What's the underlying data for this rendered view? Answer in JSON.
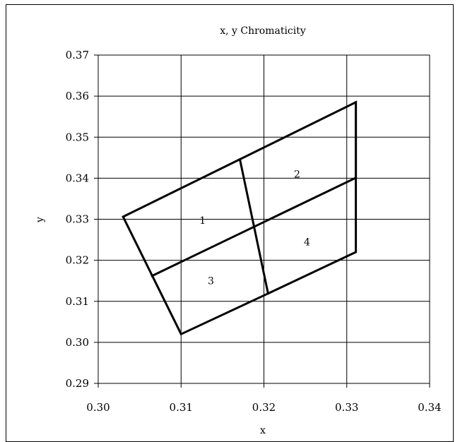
{
  "chart_data": {
    "type": "line",
    "title": "x, y Chromaticity",
    "xlabel": "x",
    "ylabel": "y",
    "xlim": [
      0.3,
      0.34
    ],
    "ylim": [
      0.29,
      0.37
    ],
    "x_ticks": [
      "0.30",
      "0.31",
      "0.32",
      "0.33",
      "0.34"
    ],
    "y_ticks": [
      "0.29",
      "0.30",
      "0.31",
      "0.32",
      "0.33",
      "0.34",
      "0.35",
      "0.36",
      "0.37"
    ],
    "grid": true,
    "series": [
      {
        "x": [
          0.303,
          0.3171,
          0.3311,
          0.3311,
          0.3205,
          0.31,
          0.303
        ],
        "y": [
          0.3306,
          0.3446,
          0.3585,
          0.322,
          0.3119,
          0.302,
          0.3306
        ]
      },
      {
        "x": [
          0.3065,
          0.3311
        ],
        "y": [
          0.3162,
          0.3401
        ]
      },
      {
        "x": [
          0.3171,
          0.3205
        ],
        "y": [
          0.3446,
          0.3119
        ]
      },
      {
        "x": [
          0.3311,
          0.3311
        ],
        "y": [
          0.3401,
          0.3585
        ]
      }
    ],
    "region_labels": [
      {
        "text": "1",
        "x": 0.3126,
        "y": 0.3297
      },
      {
        "text": "2",
        "x": 0.324,
        "y": 0.341
      },
      {
        "text": "3",
        "x": 0.3136,
        "y": 0.315
      },
      {
        "text": "4",
        "x": 0.3252,
        "y": 0.3245
      }
    ]
  }
}
